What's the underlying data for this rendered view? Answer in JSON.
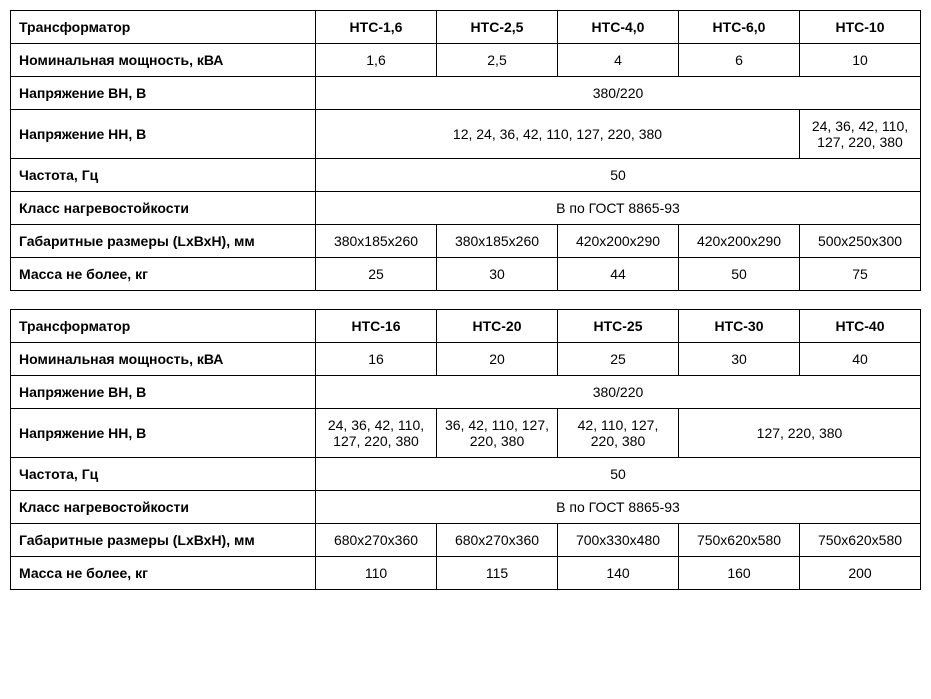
{
  "table1": {
    "headers": [
      "Трансформатор",
      "НТС-1,6",
      "НТС-2,5",
      "НТС-4,0",
      "НТС-6,0",
      "НТС-10"
    ],
    "rows": [
      {
        "label": "Номинальная мощность, кВА",
        "cells": [
          {
            "v": "1,6"
          },
          {
            "v": "2,5"
          },
          {
            "v": "4"
          },
          {
            "v": "6"
          },
          {
            "v": "10"
          }
        ]
      },
      {
        "label": "Напряжение ВН, В",
        "cells": [
          {
            "v": "380/220",
            "span": 5
          }
        ]
      },
      {
        "label": "Напряжение НН, В",
        "cells": [
          {
            "v": "12, 24, 36, 42, 110, 127, 220, 380",
            "span": 4
          },
          {
            "v": "24, 36, 42, 110, 127, 220, 380"
          }
        ]
      },
      {
        "label": "Частота, Гц",
        "cells": [
          {
            "v": "50",
            "span": 5
          }
        ]
      },
      {
        "label": "Класс нагревостойкости",
        "cells": [
          {
            "v": "В по ГОСТ 8865-93",
            "span": 5
          }
        ]
      },
      {
        "label": "Габаритные размеры (LхВхН), мм",
        "cells": [
          {
            "v": "380х185х260"
          },
          {
            "v": "380х185х260"
          },
          {
            "v": "420х200х290"
          },
          {
            "v": "420х200х290"
          },
          {
            "v": "500х250х300"
          }
        ]
      },
      {
        "label": "Масса не более, кг",
        "cells": [
          {
            "v": "25"
          },
          {
            "v": "30"
          },
          {
            "v": "44"
          },
          {
            "v": "50"
          },
          {
            "v": "75"
          }
        ]
      }
    ]
  },
  "table2": {
    "headers": [
      "Трансформатор",
      "НТС-16",
      "НТС-20",
      "НТС-25",
      "НТС-30",
      "НТС-40"
    ],
    "rows": [
      {
        "label": "Номинальная мощность, кВА",
        "cells": [
          {
            "v": "16"
          },
          {
            "v": "20"
          },
          {
            "v": "25"
          },
          {
            "v": "30"
          },
          {
            "v": "40"
          }
        ]
      },
      {
        "label": "Напряжение ВН, В",
        "cells": [
          {
            "v": "380/220",
            "span": 5
          }
        ]
      },
      {
        "label": "Напряжение НН, В",
        "cells": [
          {
            "v": "24, 36, 42, 110, 127, 220, 380"
          },
          {
            "v": "36, 42, 110, 127, 220, 380"
          },
          {
            "v": "42, 110, 127, 220, 380"
          },
          {
            "v": "127, 220, 380",
            "span": 2
          }
        ]
      },
      {
        "label": "Частота, Гц",
        "cells": [
          {
            "v": "50",
            "span": 5
          }
        ]
      },
      {
        "label": "Класс нагревостойкости",
        "cells": [
          {
            "v": "В по ГОСТ 8865-93",
            "span": 5
          }
        ]
      },
      {
        "label": "Габаритные размеры (LхВхН), мм",
        "cells": [
          {
            "v": "680х270х360"
          },
          {
            "v": "680х270х360"
          },
          {
            "v": "700х330х480"
          },
          {
            "v": "750х620х580"
          },
          {
            "v": "750х620х580"
          }
        ]
      },
      {
        "label": "Масса не более, кг",
        "cells": [
          {
            "v": "110"
          },
          {
            "v": "115"
          },
          {
            "v": "140"
          },
          {
            "v": "160"
          },
          {
            "v": "200"
          }
        ]
      }
    ]
  }
}
